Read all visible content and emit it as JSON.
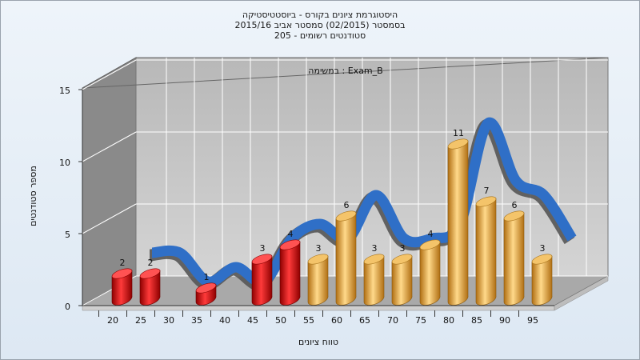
{
  "chart_data": {
    "type": "bar",
    "title_lines": [
      "היסטוגרמת ציונים בקורס - ביוסטטיסטיקה",
      "בסמסטר  (02/2015)  סמסטר אביב 2015/16",
      "205 - סטודנטים רשומים"
    ],
    "subtitle": "במשימה : Exam_B",
    "xlabel": "טווח ציונים",
    "ylabel": "מספר סטודנטים",
    "categories": [
      "20",
      "25",
      "30",
      "35",
      "40",
      "45",
      "50",
      "55",
      "60",
      "65",
      "70",
      "75",
      "80",
      "85",
      "90",
      "95"
    ],
    "values": [
      2,
      2,
      0,
      1,
      0,
      3,
      4,
      3,
      6,
      3,
      3,
      4,
      11,
      7,
      6,
      3
    ],
    "value_labels": [
      "2",
      "2",
      "",
      "1",
      "",
      "3",
      "4",
      "3",
      "6",
      "3",
      "3",
      "4",
      "11",
      "7",
      "6",
      "3"
    ],
    "yticks": [
      0,
      5,
      10,
      15
    ],
    "ylim": [
      0,
      15
    ],
    "grid": true,
    "colors": {
      "fail_bar": "#e01515",
      "pass_bar": "#e8a63c",
      "trend_ribbon": "#2f6fc7",
      "trend_ribbon_back": "#555555",
      "back_wall": "#c4c4c4",
      "side_wall": "#8a8a8a"
    }
  }
}
